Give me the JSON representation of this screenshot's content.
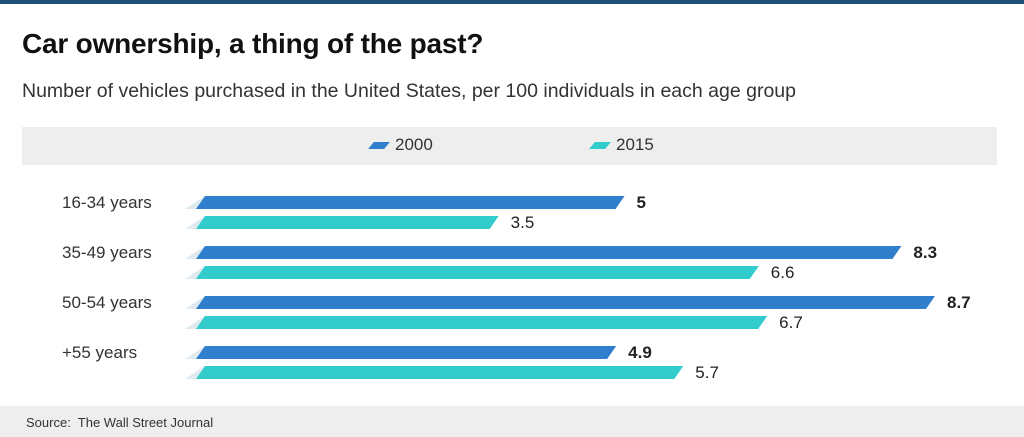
{
  "colors": {
    "series_2000": "#2f7fcc",
    "series_2015": "#33cccc",
    "top_rule": "#1f4e79"
  },
  "header": {
    "title": "Car ownership, a thing of the past?",
    "subtitle": "Number of vehicles purchased in the United States, per 100 individuals in each age group"
  },
  "footer": {
    "source": "Source:  The Wall Street Journal"
  },
  "chart_data": {
    "type": "bar",
    "orientation": "horizontal",
    "title": "Car ownership, a thing of the past?",
    "subtitle": "Number of vehicles purchased in the United States, per 100 individuals in each age group",
    "categories": [
      "16-34 years",
      "35-49 years",
      "50-54 years",
      "+55 years"
    ],
    "series": [
      {
        "name": "2000",
        "values": [
          5,
          8.3,
          8.7,
          4.9
        ],
        "labels": [
          "5",
          "8.3",
          "8.7",
          "4.9"
        ],
        "label_weight": "bold"
      },
      {
        "name": "2015",
        "values": [
          3.5,
          6.6,
          6.7,
          5.7
        ],
        "labels": [
          "3.5",
          "6.6",
          "6.7",
          "5.7"
        ],
        "label_weight": "normal"
      }
    ],
    "xlim": [
      0,
      8.7
    ],
    "legend_position": "top",
    "grid": false,
    "xlabel": "",
    "ylabel": ""
  }
}
